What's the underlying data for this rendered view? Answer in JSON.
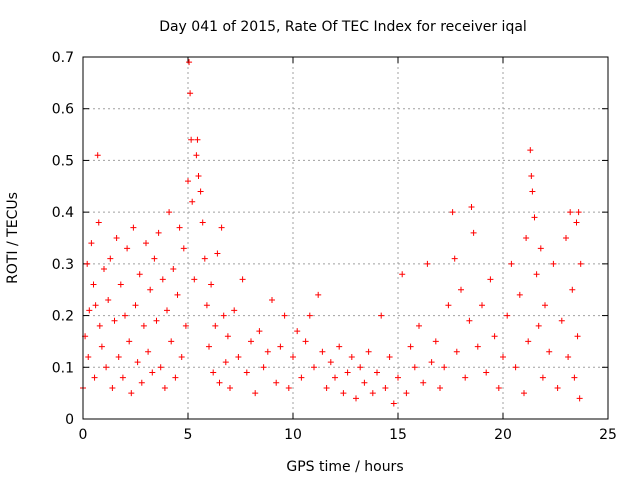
{
  "chart_data": {
    "type": "scatter",
    "title": "Day 041 of 2015, Rate Of TEC Index for receiver iqal",
    "xlabel": "GPS time / hours",
    "ylabel": "ROTI / TECUs",
    "xlim": [
      0,
      25
    ],
    "ylim": [
      0,
      0.7
    ],
    "xticks": [
      0,
      5,
      10,
      15,
      20,
      25
    ],
    "xtick_labels": [
      "0",
      "5",
      "10",
      "15",
      "20",
      "25"
    ],
    "yticks": [
      0,
      0.1,
      0.2,
      0.3,
      0.4,
      0.5,
      0.6,
      0.7
    ],
    "ytick_labels": [
      "0",
      "0.1",
      "0.2",
      "0.3",
      "0.4",
      "0.5",
      "0.6",
      "0.7"
    ],
    "grid": true,
    "marker": "+",
    "color": "#ff0000",
    "series": [
      {
        "name": "ROTI",
        "points": [
          [
            0.0,
            0.06
          ],
          [
            0.1,
            0.16
          ],
          [
            0.2,
            0.3
          ],
          [
            0.25,
            0.12
          ],
          [
            0.3,
            0.21
          ],
          [
            0.4,
            0.34
          ],
          [
            0.5,
            0.26
          ],
          [
            0.55,
            0.08
          ],
          [
            0.6,
            0.22
          ],
          [
            0.7,
            0.51
          ],
          [
            0.75,
            0.38
          ],
          [
            0.8,
            0.18
          ],
          [
            0.9,
            0.14
          ],
          [
            1.0,
            0.29
          ],
          [
            1.1,
            0.1
          ],
          [
            1.2,
            0.23
          ],
          [
            1.3,
            0.31
          ],
          [
            1.4,
            0.06
          ],
          [
            1.5,
            0.19
          ],
          [
            1.6,
            0.35
          ],
          [
            1.7,
            0.12
          ],
          [
            1.8,
            0.26
          ],
          [
            1.9,
            0.08
          ],
          [
            2.0,
            0.2
          ],
          [
            2.1,
            0.33
          ],
          [
            2.2,
            0.15
          ],
          [
            2.3,
            0.05
          ],
          [
            2.4,
            0.37
          ],
          [
            2.5,
            0.22
          ],
          [
            2.6,
            0.11
          ],
          [
            2.7,
            0.28
          ],
          [
            2.8,
            0.07
          ],
          [
            2.9,
            0.18
          ],
          [
            3.0,
            0.34
          ],
          [
            3.1,
            0.13
          ],
          [
            3.2,
            0.25
          ],
          [
            3.3,
            0.09
          ],
          [
            3.4,
            0.31
          ],
          [
            3.5,
            0.19
          ],
          [
            3.6,
            0.36
          ],
          [
            3.7,
            0.1
          ],
          [
            3.8,
            0.27
          ],
          [
            3.9,
            0.06
          ],
          [
            4.0,
            0.21
          ],
          [
            4.1,
            0.4
          ],
          [
            4.2,
            0.15
          ],
          [
            4.3,
            0.29
          ],
          [
            4.4,
            0.08
          ],
          [
            4.5,
            0.24
          ],
          [
            4.6,
            0.37
          ],
          [
            4.7,
            0.12
          ],
          [
            4.8,
            0.33
          ],
          [
            4.9,
            0.18
          ],
          [
            5.0,
            0.46
          ],
          [
            5.05,
            0.69
          ],
          [
            5.1,
            0.63
          ],
          [
            5.15,
            0.54
          ],
          [
            5.2,
            0.42
          ],
          [
            5.3,
            0.27
          ],
          [
            5.4,
            0.51
          ],
          [
            5.45,
            0.54
          ],
          [
            5.5,
            0.47
          ],
          [
            5.6,
            0.44
          ],
          [
            5.7,
            0.38
          ],
          [
            5.8,
            0.31
          ],
          [
            5.9,
            0.22
          ],
          [
            6.0,
            0.14
          ],
          [
            6.1,
            0.26
          ],
          [
            6.2,
            0.09
          ],
          [
            6.3,
            0.18
          ],
          [
            6.4,
            0.32
          ],
          [
            6.5,
            0.07
          ],
          [
            6.6,
            0.37
          ],
          [
            6.7,
            0.2
          ],
          [
            6.8,
            0.11
          ],
          [
            6.9,
            0.16
          ],
          [
            7.0,
            0.06
          ],
          [
            7.2,
            0.21
          ],
          [
            7.4,
            0.12
          ],
          [
            7.6,
            0.27
          ],
          [
            7.8,
            0.09
          ],
          [
            8.0,
            0.15
          ],
          [
            8.2,
            0.05
          ],
          [
            8.4,
            0.17
          ],
          [
            8.6,
            0.1
          ],
          [
            8.8,
            0.13
          ],
          [
            9.0,
            0.23
          ],
          [
            9.2,
            0.07
          ],
          [
            9.4,
            0.14
          ],
          [
            9.6,
            0.2
          ],
          [
            9.8,
            0.06
          ],
          [
            10.0,
            0.12
          ],
          [
            10.2,
            0.17
          ],
          [
            10.4,
            0.08
          ],
          [
            10.6,
            0.15
          ],
          [
            10.8,
            0.2
          ],
          [
            11.0,
            0.1
          ],
          [
            11.2,
            0.24
          ],
          [
            11.4,
            0.13
          ],
          [
            11.6,
            0.06
          ],
          [
            11.8,
            0.11
          ],
          [
            12.0,
            0.08
          ],
          [
            12.2,
            0.14
          ],
          [
            12.4,
            0.05
          ],
          [
            12.6,
            0.09
          ],
          [
            12.8,
            0.12
          ],
          [
            13.0,
            0.04
          ],
          [
            13.2,
            0.1
          ],
          [
            13.4,
            0.07
          ],
          [
            13.6,
            0.13
          ],
          [
            13.8,
            0.05
          ],
          [
            14.0,
            0.09
          ],
          [
            14.2,
            0.2
          ],
          [
            14.4,
            0.06
          ],
          [
            14.6,
            0.12
          ],
          [
            14.8,
            0.03
          ],
          [
            15.0,
            0.08
          ],
          [
            15.2,
            0.28
          ],
          [
            15.4,
            0.05
          ],
          [
            15.6,
            0.14
          ],
          [
            15.8,
            0.1
          ],
          [
            16.0,
            0.18
          ],
          [
            16.2,
            0.07
          ],
          [
            16.4,
            0.3
          ],
          [
            16.6,
            0.11
          ],
          [
            16.8,
            0.15
          ],
          [
            17.0,
            0.06
          ],
          [
            17.2,
            0.1
          ],
          [
            17.4,
            0.22
          ],
          [
            17.6,
            0.4
          ],
          [
            17.7,
            0.31
          ],
          [
            17.8,
            0.13
          ],
          [
            18.0,
            0.25
          ],
          [
            18.2,
            0.08
          ],
          [
            18.4,
            0.19
          ],
          [
            18.5,
            0.41
          ],
          [
            18.6,
            0.36
          ],
          [
            18.8,
            0.14
          ],
          [
            19.0,
            0.22
          ],
          [
            19.2,
            0.09
          ],
          [
            19.4,
            0.27
          ],
          [
            19.6,
            0.16
          ],
          [
            19.8,
            0.06
          ],
          [
            20.0,
            0.12
          ],
          [
            20.2,
            0.2
          ],
          [
            20.4,
            0.3
          ],
          [
            20.6,
            0.1
          ],
          [
            20.8,
            0.24
          ],
          [
            21.0,
            0.05
          ],
          [
            21.1,
            0.35
          ],
          [
            21.2,
            0.15
          ],
          [
            21.3,
            0.52
          ],
          [
            21.35,
            0.47
          ],
          [
            21.4,
            0.44
          ],
          [
            21.5,
            0.39
          ],
          [
            21.6,
            0.28
          ],
          [
            21.7,
            0.18
          ],
          [
            21.8,
            0.33
          ],
          [
            21.9,
            0.08
          ],
          [
            22.0,
            0.22
          ],
          [
            22.2,
            0.13
          ],
          [
            22.4,
            0.3
          ],
          [
            22.6,
            0.06
          ],
          [
            22.8,
            0.19
          ],
          [
            23.0,
            0.35
          ],
          [
            23.1,
            0.12
          ],
          [
            23.2,
            0.4
          ],
          [
            23.3,
            0.25
          ],
          [
            23.4,
            0.08
          ],
          [
            23.5,
            0.38
          ],
          [
            23.55,
            0.16
          ],
          [
            23.6,
            0.4
          ],
          [
            23.65,
            0.04
          ],
          [
            23.7,
            0.3
          ]
        ]
      }
    ]
  }
}
